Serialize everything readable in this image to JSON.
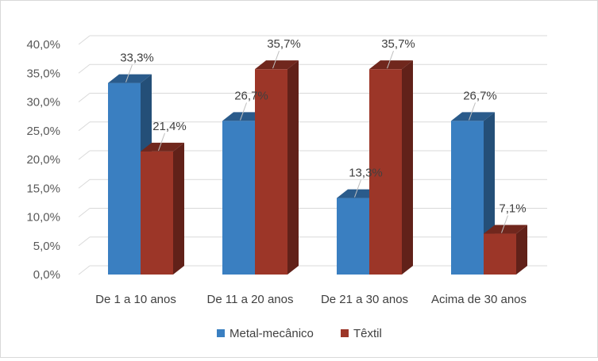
{
  "chart_data": {
    "type": "bar",
    "categories": [
      "De 1 a 10 anos",
      "De 11 a 20 anos",
      "De 21 a 30 anos",
      "Acima de 30 anos"
    ],
    "series": [
      {
        "name": "Metal-mecânico",
        "values": [
          33.3,
          26.7,
          13.3,
          26.7
        ],
        "labels": [
          "33,3%",
          "26,7%",
          "13,3%",
          "26,7%"
        ],
        "color": "#3a7fc1"
      },
      {
        "name": "Têxtil",
        "values": [
          21.4,
          35.7,
          35.7,
          7.1
        ],
        "labels": [
          "21,4%",
          "35,7%",
          "35,7%",
          "7,1%"
        ],
        "color": "#9c3628"
      }
    ],
    "ylim": [
      0,
      40
    ],
    "yticks": [
      0,
      5,
      10,
      15,
      20,
      25,
      30,
      35,
      40
    ],
    "ytick_labels": [
      "0,0%",
      "5,0%",
      "10,0%",
      "15,0%",
      "20,0%",
      "25,0%",
      "30,0%",
      "35,0%",
      "40,0%"
    ],
    "grid": true,
    "legend": "bottom",
    "three_d": true
  }
}
